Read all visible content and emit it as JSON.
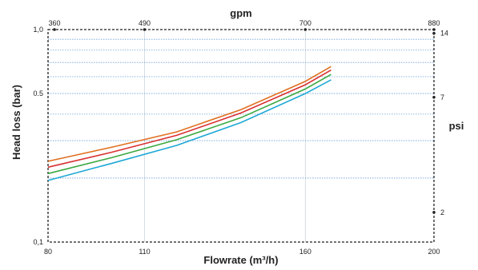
{
  "chart_data": {
    "type": "line",
    "xlabel": "Flowrate  (m³/h)",
    "ylabel": "Head loss  (bar)",
    "x_top_label": "gpm",
    "y_right_label": "psi",
    "x_bottom": {
      "range": [
        80,
        200
      ],
      "ticks": [
        80,
        110,
        160,
        200
      ],
      "tick_labels": [
        "80",
        "110",
        "160",
        "200"
      ]
    },
    "x_top": {
      "tick_labels": [
        "360",
        "490",
        "700",
        "880"
      ],
      "tick_positions_flow": [
        82,
        110,
        160,
        200
      ]
    },
    "y_left": {
      "scale": "log",
      "range": [
        0.1,
        1.0
      ],
      "ticks": [
        0.1,
        0.5,
        1.0
      ],
      "tick_labels": [
        "0,1",
        "0.5",
        "1,0"
      ],
      "grid_lines": [
        0.6,
        0.7,
        0.8,
        0.9
      ]
    },
    "y_right": {
      "tick_labels": [
        "2",
        "7",
        "14"
      ],
      "tick_positions_bar": [
        0.138,
        0.48,
        0.96
      ]
    },
    "series": [
      {
        "color": "#e07020",
        "x": [
          80,
          100,
          120,
          140,
          160,
          168
        ],
        "y": [
          0.24,
          0.28,
          0.33,
          0.42,
          0.57,
          0.67
        ]
      },
      {
        "color": "#d93030",
        "x": [
          80,
          100,
          120,
          140,
          160,
          168
        ],
        "y": [
          0.225,
          0.265,
          0.318,
          0.405,
          0.55,
          0.645
        ]
      },
      {
        "color": "#3aa840",
        "x": [
          80,
          100,
          120,
          140,
          160,
          168
        ],
        "y": [
          0.21,
          0.25,
          0.303,
          0.385,
          0.525,
          0.615
        ]
      },
      {
        "color": "#1ea8d6",
        "x": [
          80,
          100,
          120,
          140,
          160,
          168
        ],
        "y": [
          0.195,
          0.235,
          0.285,
          0.365,
          0.5,
          0.58
        ]
      }
    ],
    "grid": true,
    "legend": "none"
  }
}
